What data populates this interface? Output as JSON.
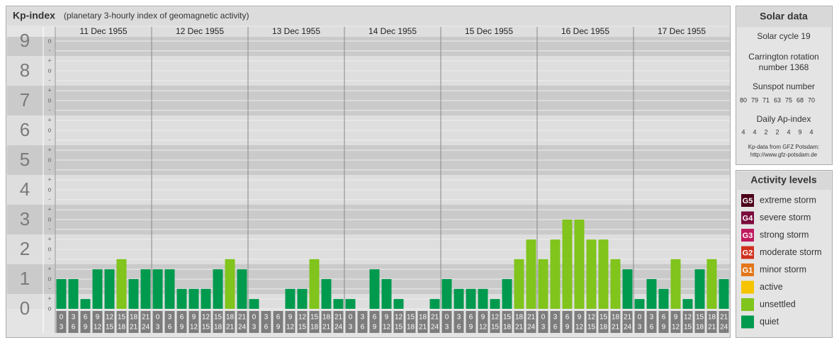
{
  "header": {
    "title": "Kp-index",
    "subtitle": "(planetary 3-hourly index of geomagnetic activity)"
  },
  "chart_data": {
    "type": "bar",
    "days": [
      "11 Dec 1955",
      "12 Dec 1955",
      "13 Dec 1955",
      "14 Dec 1955",
      "15 Dec 1955",
      "16 Dec 1955",
      "17 Dec 1955"
    ],
    "intervals": [
      {
        "from": "0",
        "to": "3"
      },
      {
        "from": "3",
        "to": "6"
      },
      {
        "from": "6",
        "to": "9"
      },
      {
        "from": "9",
        "to": "12"
      },
      {
        "from": "12",
        "to": "15"
      },
      {
        "from": "15",
        "to": "18"
      },
      {
        "from": "18",
        "to": "21"
      },
      {
        "from": "21",
        "to": "24"
      }
    ],
    "values": [
      1,
      1,
      0.33,
      1.33,
      1.33,
      1.67,
      1,
      1.33,
      1.33,
      1.33,
      0.67,
      0.67,
      0.67,
      1.33,
      1.67,
      1.33,
      0.33,
      0,
      0,
      0.67,
      0.67,
      1.67,
      1,
      0.33,
      0.33,
      0,
      1.33,
      1,
      0.33,
      0,
      0,
      0.33,
      1,
      0.67,
      0.67,
      0.67,
      0.33,
      1,
      1.67,
      2.33,
      1.67,
      2.33,
      3,
      3,
      2.33,
      2.33,
      1.67,
      1.33,
      0.33,
      1,
      0.67,
      1.67,
      0.33,
      1.33,
      1.67,
      1
    ],
    "colors": [
      "#009a4e",
      "#009a4e",
      "#009a4e",
      "#009a4e",
      "#009a4e",
      "#80c41c",
      "#009a4e",
      "#009a4e",
      "#009a4e",
      "#009a4e",
      "#009a4e",
      "#009a4e",
      "#009a4e",
      "#009a4e",
      "#80c41c",
      "#009a4e",
      "#009a4e",
      "#009a4e",
      "#009a4e",
      "#009a4e",
      "#009a4e",
      "#80c41c",
      "#009a4e",
      "#009a4e",
      "#009a4e",
      "#009a4e",
      "#009a4e",
      "#009a4e",
      "#009a4e",
      "#009a4e",
      "#009a4e",
      "#009a4e",
      "#009a4e",
      "#009a4e",
      "#009a4e",
      "#009a4e",
      "#009a4e",
      "#009a4e",
      "#80c41c",
      "#80c41c",
      "#80c41c",
      "#80c41c",
      "#80c41c",
      "#80c41c",
      "#80c41c",
      "#80c41c",
      "#80c41c",
      "#009a4e",
      "#009a4e",
      "#009a4e",
      "#009a4e",
      "#80c41c",
      "#009a4e",
      "#009a4e",
      "#80c41c",
      "#009a4e"
    ],
    "ylim": [
      0,
      9
    ],
    "yticks": [
      0,
      1,
      2,
      3,
      4,
      5,
      6,
      7,
      8,
      9
    ],
    "minor_ticks": [
      {
        "value": 0,
        "label": "o"
      },
      {
        "value": 0.33,
        "label": "+"
      },
      {
        "value": 0.67,
        "label": "-"
      },
      {
        "value": 1,
        "label": "o"
      },
      {
        "value": 1.33,
        "label": "+"
      },
      {
        "value": 1.67,
        "label": "-"
      },
      {
        "value": 2,
        "label": "o"
      },
      {
        "value": 2.33,
        "label": "+"
      },
      {
        "value": 2.67,
        "label": "-"
      },
      {
        "value": 3,
        "label": "o"
      },
      {
        "value": 3.33,
        "label": "+"
      },
      {
        "value": 3.67,
        "label": "-"
      },
      {
        "value": 4,
        "label": "o"
      },
      {
        "value": 4.33,
        "label": "+"
      },
      {
        "value": 4.67,
        "label": "-"
      },
      {
        "value": 5,
        "label": "o"
      },
      {
        "value": 5.33,
        "label": "+"
      },
      {
        "value": 5.67,
        "label": "-"
      },
      {
        "value": 6,
        "label": "o"
      },
      {
        "value": 6.33,
        "label": "+"
      },
      {
        "value": 6.67,
        "label": "-"
      },
      {
        "value": 7,
        "label": "o"
      },
      {
        "value": 7.33,
        "label": "+"
      },
      {
        "value": 7.67,
        "label": "-"
      },
      {
        "value": 8,
        "label": "o"
      },
      {
        "value": 8.33,
        "label": "+"
      },
      {
        "value": 8.67,
        "label": "-"
      },
      {
        "value": 9,
        "label": "o"
      }
    ]
  },
  "solar_data": {
    "title": "Solar data",
    "cycle": "Solar cycle 19",
    "carrington": [
      "Carrington rotation",
      "number 1368"
    ],
    "sunspot_title": "Sunspot number",
    "sunspot": [
      80,
      79,
      71,
      63,
      75,
      68,
      70
    ],
    "ap_title": "Daily Ap-index",
    "ap": [
      4,
      4,
      2,
      2,
      4,
      9,
      4
    ],
    "source": [
      "Kp-data from GFZ Potsdam:",
      "http://www.gfz-potsdam.de"
    ]
  },
  "activity_levels": {
    "title": "Activity levels",
    "items": [
      {
        "badge": "G5",
        "name": "extreme storm",
        "color": "#4d0019"
      },
      {
        "badge": "G4",
        "name": "severe storm",
        "color": "#7a0a3c"
      },
      {
        "badge": "G3",
        "name": "strong storm",
        "color": "#c0185c"
      },
      {
        "badge": "G2",
        "name": "moderate storm",
        "color": "#d0301e"
      },
      {
        "badge": "G1",
        "name": "minor storm",
        "color": "#e2761a"
      },
      {
        "name": "active",
        "color": "#f6c400"
      },
      {
        "name": "unsettled",
        "color": "#80c41c"
      },
      {
        "name": "quiet",
        "color": "#009a4e"
      }
    ]
  }
}
